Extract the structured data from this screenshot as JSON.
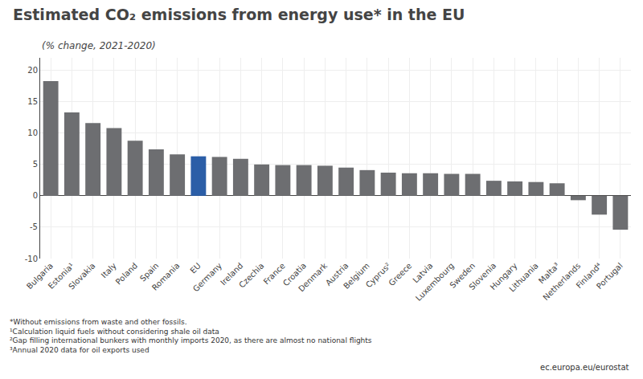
{
  "chart_data": {
    "type": "bar",
    "title": "Estimated CO₂ emissions from energy use* in the EU",
    "subtitle": "(% change, 2021-2020)",
    "categories": [
      "Bulgaria",
      "Estonia¹",
      "Slovakia",
      "Italy",
      "Poland",
      "Spain",
      "Romania",
      "EU",
      "Germany",
      "Ireland",
      "Czechia",
      "France",
      "Croatia",
      "Denmark",
      "Austria",
      "Belgium",
      "Cyprus²",
      "Greece",
      "Latvia",
      "Luxembourg",
      "Sweden",
      "Slovenia",
      "Hungary",
      "Lithuania",
      "Malta³",
      "Netherlands",
      "Finland⁴",
      "Portugal"
    ],
    "values": [
      18.3,
      13.3,
      11.6,
      10.8,
      8.8,
      7.4,
      6.6,
      6.3,
      6.2,
      5.9,
      5.0,
      4.9,
      4.9,
      4.8,
      4.5,
      4.1,
      3.7,
      3.6,
      3.6,
      3.5,
      3.5,
      2.4,
      2.3,
      2.2,
      2.0,
      -0.7,
      -3.0,
      -5.4
    ],
    "colors": [
      "#6d6e71",
      "#6d6e71",
      "#6d6e71",
      "#6d6e71",
      "#6d6e71",
      "#6d6e71",
      "#6d6e71",
      "#2b5ea7",
      "#6d6e71",
      "#6d6e71",
      "#6d6e71",
      "#6d6e71",
      "#6d6e71",
      "#6d6e71",
      "#6d6e71",
      "#6d6e71",
      "#6d6e71",
      "#6d6e71",
      "#6d6e71",
      "#6d6e71",
      "#6d6e71",
      "#6d6e71",
      "#6d6e71",
      "#6d6e71",
      "#6d6e71",
      "#6d6e71",
      "#6d6e71",
      "#6d6e71"
    ],
    "ylim": [
      -10,
      22
    ],
    "yticks": [
      -10,
      -5,
      0,
      5,
      10,
      15,
      20
    ],
    "grid": true,
    "annotations": [
      "*Without emissions from waste and other fossils.",
      "¹Calculation liquid fuels without considering shale oil data",
      "²Gap filling international bunkers with monthly imports 2020, as there are almost no national flights",
      "³Annual 2020 data for oil exports used",
      "ec.europa.eu/eurostat"
    ]
  }
}
